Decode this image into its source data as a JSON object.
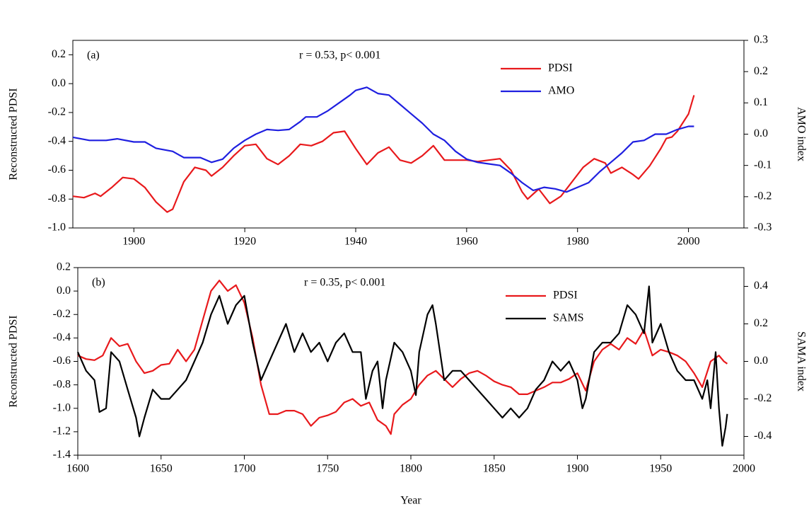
{
  "chart_data": [
    {
      "type": "line",
      "annotations": [
        "(a)",
        "r = 0.53, p< 0.001"
      ],
      "ylabel": "Reconstructed PDSI",
      "y2label": "AMO index",
      "xlim": [
        1889,
        2010
      ],
      "xticks": [
        1900,
        1920,
        1940,
        1960,
        1980,
        2000
      ],
      "ylim": [
        -1.0,
        0.3
      ],
      "yticks": [
        0.2,
        {
          "value": 0,
          "label": "0.0"
        },
        -0.2,
        -0.4,
        -0.6,
        -0.8,
        {
          "value": -1.0,
          "label": "-1.0"
        }
      ],
      "y2lim": [
        -0.3,
        0.3
      ],
      "y2ticks": [
        0.3,
        0.2,
        0.1,
        {
          "value": 0,
          "label": "0.0"
        },
        -0.1,
        -0.2,
        -0.3
      ],
      "legend": "upper-center",
      "series": [
        {
          "name": "PDSI",
          "color": "#e8191c",
          "x": [
            1889,
            1891,
            1893,
            1894,
            1896,
            1898,
            1900,
            1902,
            1904,
            1906,
            1907,
            1909,
            1911,
            1913,
            1914,
            1916,
            1918,
            1920,
            1922,
            1924,
            1926,
            1928,
            1930,
            1932,
            1934,
            1936,
            1938,
            1940,
            1942,
            1944,
            1946,
            1948,
            1950,
            1952,
            1954,
            1956,
            1958,
            1960,
            1962,
            1964,
            1966,
            1968,
            1970,
            1971,
            1973,
            1975,
            1977,
            1979,
            1981,
            1983,
            1985,
            1986,
            1988,
            1990,
            1991,
            1993,
            1995,
            1996,
            1997,
            1998,
            2000,
            2001
          ],
          "values": [
            -0.78,
            -0.79,
            -0.76,
            -0.78,
            -0.72,
            -0.65,
            -0.66,
            -0.72,
            -0.82,
            -0.89,
            -0.87,
            -0.68,
            -0.58,
            -0.6,
            -0.64,
            -0.58,
            -0.5,
            -0.43,
            -0.42,
            -0.52,
            -0.56,
            -0.5,
            -0.42,
            -0.43,
            -0.4,
            -0.34,
            -0.33,
            -0.45,
            -0.56,
            -0.48,
            -0.44,
            -0.53,
            -0.55,
            -0.5,
            -0.43,
            -0.53,
            -0.53,
            -0.53,
            -0.54,
            -0.53,
            -0.52,
            -0.6,
            -0.75,
            -0.8,
            -0.73,
            -0.83,
            -0.78,
            -0.68,
            -0.58,
            -0.52,
            -0.55,
            -0.62,
            -0.58,
            -0.63,
            -0.66,
            -0.57,
            -0.45,
            -0.38,
            -0.37,
            -0.33,
            -0.21,
            -0.08
          ]
        },
        {
          "name": "AMO",
          "color": "#1f1fe0",
          "axis": "y2",
          "x": [
            1889,
            1892,
            1895,
            1897,
            1900,
            1902,
            1904,
            1907,
            1909,
            1912,
            1914,
            1916,
            1918,
            1920,
            1922,
            1924,
            1926,
            1928,
            1930,
            1931,
            1933,
            1935,
            1937,
            1939,
            1940,
            1942,
            1944,
            1946,
            1948,
            1950,
            1952,
            1954,
            1956,
            1958,
            1960,
            1962,
            1964,
            1966,
            1968,
            1970,
            1972,
            1974,
            1976,
            1978,
            1980,
            1982,
            1984,
            1986,
            1988,
            1990,
            1992,
            1994,
            1996,
            1998,
            2000,
            2001
          ],
          "values": [
            -0.01,
            -0.02,
            -0.02,
            -0.015,
            -0.025,
            -0.025,
            -0.045,
            -0.055,
            -0.075,
            -0.075,
            -0.09,
            -0.08,
            -0.045,
            -0.02,
            0.0,
            0.015,
            0.012,
            0.015,
            0.04,
            0.055,
            0.055,
            0.075,
            0.1,
            0.125,
            0.14,
            0.15,
            0.13,
            0.125,
            0.095,
            0.065,
            0.035,
            0.0,
            -0.02,
            -0.055,
            -0.08,
            -0.09,
            -0.095,
            -0.1,
            -0.125,
            -0.155,
            -0.18,
            -0.17,
            -0.175,
            -0.185,
            -0.17,
            -0.155,
            -0.12,
            -0.09,
            -0.06,
            -0.025,
            -0.02,
            0.0,
            0.0,
            0.015,
            0.025,
            0.025
          ]
        }
      ]
    },
    {
      "type": "line",
      "annotations": [
        "(b)",
        "r = 0.35, p< 0.001"
      ],
      "ylabel": "Reconstructed PDSI",
      "y2label": "SAMA index",
      "xlabel": "Year",
      "xlim": [
        1600,
        2000
      ],
      "xticks": [
        1600,
        1650,
        1700,
        1750,
        1800,
        1850,
        1900,
        1950,
        2000
      ],
      "ylim": [
        -1.4,
        0.2
      ],
      "yticks": [
        0.2,
        {
          "value": 0,
          "label": "0.0"
        },
        -0.2,
        -0.4,
        -0.6,
        -0.8,
        {
          "value": -1.0,
          "label": "-1.0"
        },
        -1.2,
        -1.4
      ],
      "y2lim": [
        -0.5,
        0.5
      ],
      "y2ticks": [
        0.4,
        0.2,
        {
          "value": 0,
          "label": "0.0"
        },
        -0.2,
        -0.4
      ],
      "legend": "upper-center",
      "series": [
        {
          "name": "PDSI",
          "color": "#e8191c",
          "x": [
            1600,
            1605,
            1610,
            1615,
            1620,
            1625,
            1630,
            1635,
            1640,
            1645,
            1650,
            1655,
            1660,
            1665,
            1670,
            1675,
            1680,
            1685,
            1690,
            1695,
            1700,
            1705,
            1710,
            1715,
            1720,
            1725,
            1730,
            1735,
            1740,
            1745,
            1750,
            1755,
            1760,
            1765,
            1770,
            1775,
            1780,
            1785,
            1788,
            1790,
            1795,
            1800,
            1805,
            1810,
            1815,
            1820,
            1825,
            1830,
            1835,
            1840,
            1845,
            1850,
            1855,
            1860,
            1865,
            1870,
            1875,
            1880,
            1885,
            1890,
            1895,
            1900,
            1905,
            1910,
            1915,
            1920,
            1925,
            1930,
            1935,
            1940,
            1945,
            1950,
            1955,
            1960,
            1965,
            1970,
            1975,
            1980,
            1985,
            1988,
            1990
          ],
          "values": [
            -0.55,
            -0.58,
            -0.59,
            -0.55,
            -0.4,
            -0.47,
            -0.45,
            -0.6,
            -0.7,
            -0.68,
            -0.63,
            -0.62,
            -0.5,
            -0.6,
            -0.5,
            -0.25,
            0.0,
            0.09,
            0.0,
            0.05,
            -0.1,
            -0.4,
            -0.8,
            -1.05,
            -1.05,
            -1.02,
            -1.02,
            -1.05,
            -1.15,
            -1.08,
            -1.06,
            -1.03,
            -0.95,
            -0.92,
            -0.98,
            -0.95,
            -1.1,
            -1.15,
            -1.22,
            -1.05,
            -0.97,
            -0.92,
            -0.8,
            -0.72,
            -0.68,
            -0.75,
            -0.82,
            -0.75,
            -0.7,
            -0.68,
            -0.72,
            -0.77,
            -0.8,
            -0.82,
            -0.88,
            -0.88,
            -0.85,
            -0.82,
            -0.78,
            -0.78,
            -0.75,
            -0.7,
            -0.85,
            -0.6,
            -0.5,
            -0.45,
            -0.5,
            -0.4,
            -0.45,
            -0.33,
            -0.55,
            -0.5,
            -0.52,
            -0.55,
            -0.6,
            -0.7,
            -0.82,
            -0.6,
            -0.55,
            -0.6,
            -0.62
          ]
        },
        {
          "name": "SAMS",
          "color": "#000000",
          "axis": "y2",
          "x": [
            1600,
            1605,
            1610,
            1613,
            1617,
            1620,
            1625,
            1630,
            1635,
            1637,
            1640,
            1645,
            1650,
            1655,
            1660,
            1665,
            1670,
            1675,
            1680,
            1685,
            1690,
            1695,
            1700,
            1705,
            1710,
            1715,
            1720,
            1725,
            1730,
            1735,
            1740,
            1745,
            1750,
            1755,
            1760,
            1765,
            1770,
            1773,
            1777,
            1780,
            1783,
            1785,
            1790,
            1795,
            1800,
            1803,
            1805,
            1810,
            1813,
            1815,
            1820,
            1825,
            1830,
            1835,
            1840,
            1845,
            1850,
            1855,
            1860,
            1865,
            1870,
            1875,
            1880,
            1885,
            1890,
            1895,
            1900,
            1903,
            1905,
            1910,
            1915,
            1920,
            1925,
            1930,
            1935,
            1940,
            1943,
            1945,
            1950,
            1955,
            1960,
            1965,
            1970,
            1975,
            1978,
            1980,
            1983,
            1985,
            1987,
            1989,
            1990
          ],
          "values": [
            0.05,
            -0.05,
            -0.1,
            -0.27,
            -0.25,
            0.05,
            0.0,
            -0.15,
            -0.3,
            -0.4,
            -0.3,
            -0.15,
            -0.2,
            -0.2,
            -0.15,
            -0.1,
            0.0,
            0.1,
            0.25,
            0.35,
            0.2,
            0.3,
            0.35,
            0.1,
            -0.1,
            0.0,
            0.1,
            0.2,
            0.05,
            0.15,
            0.05,
            0.1,
            0.0,
            0.1,
            0.15,
            0.05,
            0.05,
            -0.2,
            -0.05,
            0.0,
            -0.25,
            -0.1,
            0.1,
            0.05,
            -0.05,
            -0.18,
            0.05,
            0.25,
            0.3,
            0.2,
            -0.1,
            -0.05,
            -0.05,
            -0.1,
            -0.15,
            -0.2,
            -0.25,
            -0.3,
            -0.25,
            -0.3,
            -0.25,
            -0.15,
            -0.1,
            0.0,
            -0.05,
            0.0,
            -0.1,
            -0.25,
            -0.2,
            0.05,
            0.1,
            0.1,
            0.15,
            0.3,
            0.25,
            0.15,
            0.4,
            0.1,
            0.2,
            0.05,
            -0.05,
            -0.1,
            -0.1,
            -0.2,
            -0.1,
            -0.25,
            0.05,
            -0.25,
            -0.45,
            -0.35,
            -0.28
          ]
        }
      ]
    }
  ]
}
